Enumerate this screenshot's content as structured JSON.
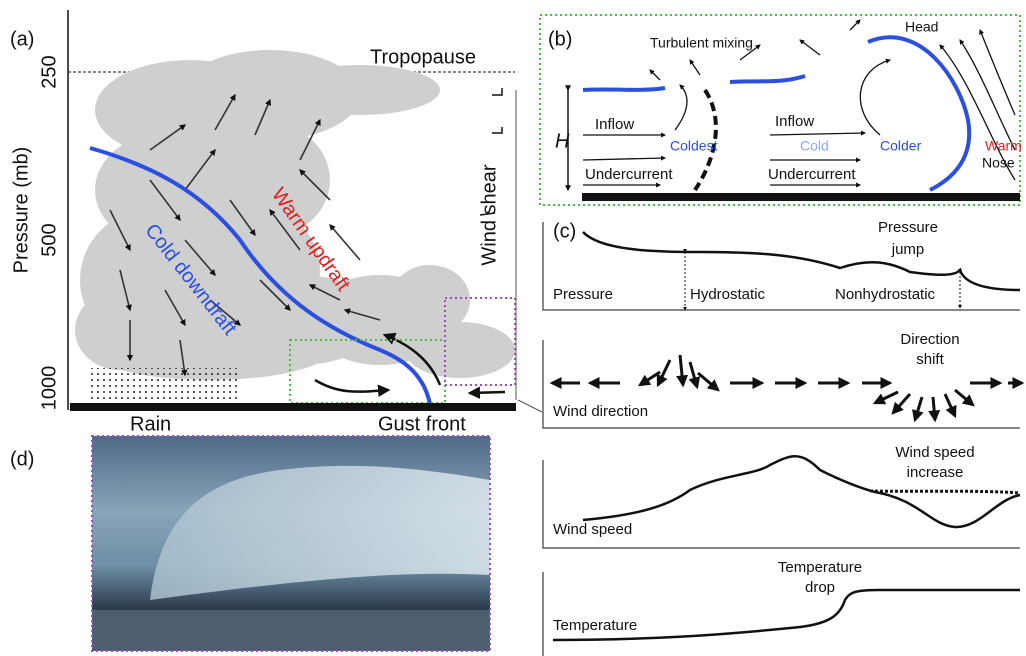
{
  "panel_a": {
    "label": "(a)",
    "tropopause": "Tropopause",
    "axis_title": "Pressure (mb)",
    "axis_labels": [
      "250",
      "500",
      "1000"
    ],
    "cold_downdraft": "Cold downdraft",
    "warm_updraft": "Warm updraft",
    "wind_shear": "Wind shear",
    "rain": "Rain",
    "gust_front": "Gust front"
  },
  "panel_b": {
    "label": "(b)",
    "turbulent_mixing": "Turbulent mixing",
    "head": "Head",
    "height": "H",
    "inflow": [
      "Inflow",
      "Inflow"
    ],
    "undercurrent": [
      "Undercurrent",
      "Undercurrent"
    ],
    "coldest": "Coldest",
    "cold": "Cold",
    "colder": "Colder",
    "warm": "Warm",
    "nose": "Nose"
  },
  "panel_c": {
    "label": "(c)",
    "pressure": {
      "name": "Pressure",
      "hydrostatic": "Hydrostatic",
      "nonhydrostatic": "Nonhydrostatic",
      "note": [
        "Pressure",
        "jump"
      ]
    },
    "wind_direction": {
      "name": "Wind direction",
      "note": [
        "Direction",
        "shift"
      ]
    },
    "wind_speed": {
      "name": "Wind speed",
      "note": [
        "Wind speed",
        "increase"
      ]
    },
    "temperature": {
      "name": "Temperature",
      "note": [
        "Temperature",
        "drop"
      ]
    }
  },
  "panel_d": {
    "label": "(d)"
  }
}
